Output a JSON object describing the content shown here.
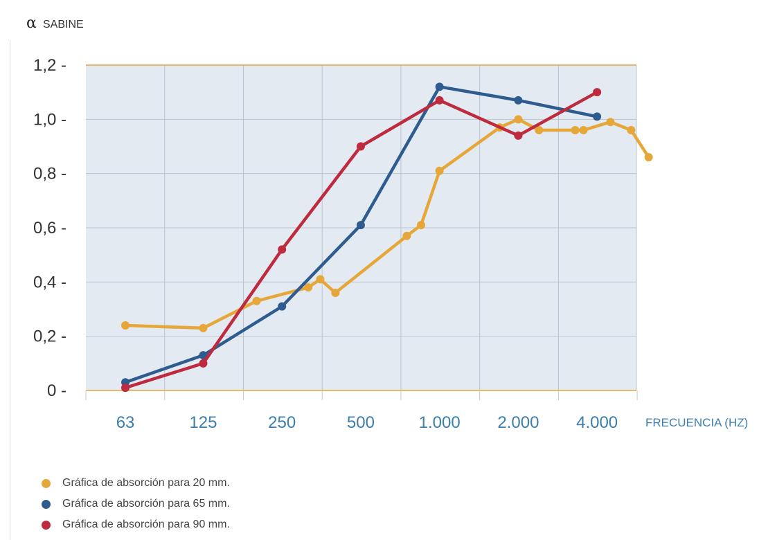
{
  "chart_data": {
    "type": "line",
    "ylabel": {
      "symbol": "α",
      "text": "SABINE"
    },
    "xlabel": "FRECUENCIA (HZ)",
    "ylim": [
      0,
      1.2
    ],
    "yticks": [
      {
        "value": 0,
        "label": "0"
      },
      {
        "value": 0.2,
        "label": "0,2"
      },
      {
        "value": 0.4,
        "label": "0,4"
      },
      {
        "value": 0.6,
        "label": "0,6"
      },
      {
        "value": 0.8,
        "label": "0,8"
      },
      {
        "value": 1.0,
        "label": "1,0"
      },
      {
        "value": 1.2,
        "label": "1,2"
      }
    ],
    "xscale": "log2-octave",
    "xlim": [
      44.5,
      5657
    ],
    "categories": [
      "63",
      "125",
      "250",
      "500",
      "1.000",
      "2.000",
      "4.000"
    ],
    "category_values": [
      63,
      125,
      250,
      500,
      1000,
      2000,
      4000
    ],
    "grid": true,
    "legend_position": "bottom",
    "colors": {
      "plot_bg": "#e3eaf1",
      "grid": "#b9c4cf",
      "axis": "#e0a640"
    },
    "series": [
      {
        "name": "Gráfica de absorción para 20 mm.",
        "color": "#e6a73a",
        "points": [
          [
            63,
            0.24
          ],
          [
            125,
            0.23
          ],
          [
            200,
            0.33
          ],
          [
            315,
            0.38
          ],
          [
            350,
            0.41
          ],
          [
            400,
            0.36
          ],
          [
            750,
            0.57
          ],
          [
            850,
            0.61
          ],
          [
            1000,
            0.81
          ],
          [
            1700,
            0.97
          ],
          [
            2000,
            1.0
          ],
          [
            2400,
            0.96
          ],
          [
            3300,
            0.96
          ],
          [
            3550,
            0.96
          ],
          [
            4500,
            0.99
          ],
          [
            5400,
            0.96
          ],
          [
            6300,
            0.86
          ]
        ]
      },
      {
        "name": "Gráfica de absorción para 65 mm.",
        "color": "#2f5c8f",
        "points": [
          [
            63,
            0.03
          ],
          [
            125,
            0.13
          ],
          [
            250,
            0.31
          ],
          [
            500,
            0.61
          ],
          [
            1000,
            1.12
          ],
          [
            2000,
            1.07
          ],
          [
            4000,
            1.01
          ]
        ]
      },
      {
        "name": "Gráfica de absorción para 90 mm.",
        "color": "#be2a3e",
        "points": [
          [
            63,
            0.01
          ],
          [
            125,
            0.1
          ],
          [
            250,
            0.52
          ],
          [
            500,
            0.9
          ],
          [
            1000,
            1.07
          ],
          [
            2000,
            0.94
          ],
          [
            4000,
            1.1
          ]
        ]
      }
    ]
  }
}
